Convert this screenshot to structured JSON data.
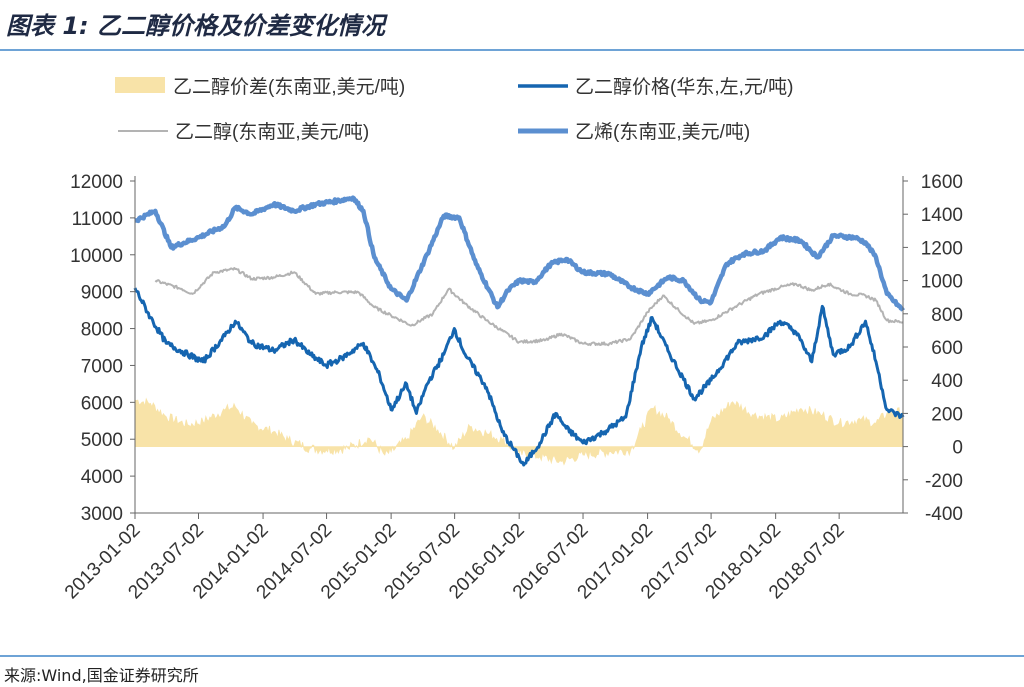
{
  "figure_title": "图表 1:   乙二醇价格及价差变化情况",
  "source": "来源:Wind,国金证券研究所",
  "colors": {
    "spread": "#f8e3a8",
    "price_east_china": "#1565b0",
    "meg_sea": "#b3b3b3",
    "ethylene_sea": "#5b8fd0",
    "axis": "#666666",
    "rule": "#6ea3d6"
  },
  "chart_data": {
    "type": "line",
    "title": "",
    "legend": [
      {
        "key": "spread",
        "label": "乙二醇价差(东南亚,美元/吨)",
        "style": "area"
      },
      {
        "key": "price_east_china",
        "label": "乙二醇价格(华东,左,元/吨)",
        "style": "line"
      },
      {
        "key": "meg_sea",
        "label": "乙二醇(东南亚,美元/吨)",
        "style": "line"
      },
      {
        "key": "ethylene_sea",
        "label": "乙烯(东南亚,美元/吨)",
        "style": "line"
      }
    ],
    "legend_position": "top",
    "x_ticks": [
      "2013-01-02",
      "2013-07-02",
      "2014-01-02",
      "2014-07-02",
      "2015-01-02",
      "2015-07-02",
      "2016-01-02",
      "2016-07-02",
      "2017-01-02",
      "2017-07-02",
      "2018-01-02",
      "2018-07-02"
    ],
    "x_range": [
      "2013-01-02",
      "2018-12-31"
    ],
    "y_left": {
      "min": 3000,
      "max": 12000,
      "ticks": [
        3000,
        4000,
        5000,
        6000,
        7000,
        8000,
        9000,
        10000,
        11000,
        12000
      ]
    },
    "y_right": {
      "min": -400,
      "max": 1600,
      "ticks": [
        -400,
        -200,
        0,
        200,
        400,
        600,
        800,
        1000,
        1200,
        1400,
        1600
      ]
    },
    "grid": false,
    "series": [
      {
        "key": "price_east_china",
        "name": "乙二醇价格(华东,左,元/吨)",
        "axis": "left",
        "points": [
          [
            "2013-01-02",
            9100
          ],
          [
            "2013-02-15",
            8300
          ],
          [
            "2013-04-01",
            7600
          ],
          [
            "2013-06-01",
            7300
          ],
          [
            "2013-07-15",
            7100
          ],
          [
            "2013-09-15",
            7800
          ],
          [
            "2013-10-15",
            8200
          ],
          [
            "2013-12-01",
            7600
          ],
          [
            "2014-02-01",
            7400
          ],
          [
            "2014-04-01",
            7700
          ],
          [
            "2014-05-15",
            7300
          ],
          [
            "2014-07-01",
            7000
          ],
          [
            "2014-08-15",
            7200
          ],
          [
            "2014-10-15",
            7600
          ],
          [
            "2014-12-01",
            6700
          ],
          [
            "2015-01-02",
            5800
          ],
          [
            "2015-02-15",
            6500
          ],
          [
            "2015-03-15",
            5700
          ],
          [
            "2015-04-15",
            6500
          ],
          [
            "2015-06-01",
            7300
          ],
          [
            "2015-07-01",
            8000
          ],
          [
            "2015-08-01",
            7300
          ],
          [
            "2015-10-01",
            6400
          ],
          [
            "2015-11-15",
            5200
          ],
          [
            "2016-01-02",
            4500
          ],
          [
            "2016-01-15",
            4300
          ],
          [
            "2016-03-01",
            4900
          ],
          [
            "2016-04-15",
            5700
          ],
          [
            "2016-05-15",
            5300
          ],
          [
            "2016-07-02",
            4900
          ],
          [
            "2016-09-01",
            5200
          ],
          [
            "2016-11-01",
            5600
          ],
          [
            "2016-12-15",
            7500
          ],
          [
            "2017-01-15",
            8300
          ],
          [
            "2017-03-01",
            7400
          ],
          [
            "2017-05-15",
            6100
          ],
          [
            "2017-07-02",
            6600
          ],
          [
            "2017-09-15",
            7600
          ],
          [
            "2017-12-01",
            7800
          ],
          [
            "2018-01-15",
            8200
          ],
          [
            "2018-03-01",
            7900
          ],
          [
            "2018-04-15",
            7100
          ],
          [
            "2018-05-15",
            8600
          ],
          [
            "2018-06-15",
            7300
          ],
          [
            "2018-08-01",
            7500
          ],
          [
            "2018-09-15",
            8200
          ],
          [
            "2018-10-15",
            7100
          ],
          [
            "2018-11-15",
            5800
          ],
          [
            "2018-12-31",
            5600
          ]
        ]
      },
      {
        "key": "meg_sea",
        "name": "乙二醇(东南亚,美元/吨)",
        "axis": "right",
        "points": [
          [
            "2013-03-01",
            1000
          ],
          [
            "2013-05-15",
            950
          ],
          [
            "2013-06-15",
            920
          ],
          [
            "2013-08-15",
            1050
          ],
          [
            "2013-10-15",
            1070
          ],
          [
            "2013-12-01",
            1010
          ],
          [
            "2014-02-01",
            1020
          ],
          [
            "2014-04-01",
            1050
          ],
          [
            "2014-06-01",
            920
          ],
          [
            "2014-08-01",
            930
          ],
          [
            "2014-10-01",
            930
          ],
          [
            "2014-11-15",
            840
          ],
          [
            "2015-01-02",
            790
          ],
          [
            "2015-03-01",
            730
          ],
          [
            "2015-05-01",
            800
          ],
          [
            "2015-06-15",
            950
          ],
          [
            "2015-08-01",
            860
          ],
          [
            "2015-10-01",
            760
          ],
          [
            "2016-01-02",
            630
          ],
          [
            "2016-03-15",
            640
          ],
          [
            "2016-05-01",
            680
          ],
          [
            "2016-07-02",
            620
          ],
          [
            "2016-09-15",
            620
          ],
          [
            "2016-11-15",
            650
          ],
          [
            "2017-01-02",
            810
          ],
          [
            "2017-02-15",
            910
          ],
          [
            "2017-04-01",
            820
          ],
          [
            "2017-05-15",
            740
          ],
          [
            "2017-07-02",
            760
          ],
          [
            "2017-09-15",
            850
          ],
          [
            "2017-11-15",
            920
          ],
          [
            "2018-01-15",
            960
          ],
          [
            "2018-03-01",
            980
          ],
          [
            "2018-04-15",
            940
          ],
          [
            "2018-06-01",
            980
          ],
          [
            "2018-08-01",
            920
          ],
          [
            "2018-09-15",
            910
          ],
          [
            "2018-10-15",
            880
          ],
          [
            "2018-11-15",
            760
          ],
          [
            "2018-12-31",
            750
          ]
        ]
      },
      {
        "key": "ethylene_sea",
        "name": "乙烯(东南亚,美元/吨)",
        "axis": "right",
        "points": [
          [
            "2013-01-02",
            1360
          ],
          [
            "2013-03-01",
            1420
          ],
          [
            "2013-04-15",
            1200
          ],
          [
            "2013-07-02",
            1260
          ],
          [
            "2013-09-15",
            1330
          ],
          [
            "2013-10-15",
            1440
          ],
          [
            "2013-12-01",
            1400
          ],
          [
            "2014-02-01",
            1460
          ],
          [
            "2014-04-01",
            1420
          ],
          [
            "2014-06-01",
            1460
          ],
          [
            "2014-08-01",
            1480
          ],
          [
            "2014-09-15",
            1500
          ],
          [
            "2014-10-15",
            1420
          ],
          [
            "2014-11-15",
            1140
          ],
          [
            "2015-01-02",
            950
          ],
          [
            "2015-02-15",
            880
          ],
          [
            "2015-04-15",
            1160
          ],
          [
            "2015-06-01",
            1390
          ],
          [
            "2015-07-15",
            1380
          ],
          [
            "2015-09-01",
            1100
          ],
          [
            "2015-11-01",
            840
          ],
          [
            "2015-12-01",
            940
          ],
          [
            "2016-01-02",
            1000
          ],
          [
            "2016-02-15",
            990
          ],
          [
            "2016-04-01",
            1100
          ],
          [
            "2016-05-15",
            1130
          ],
          [
            "2016-07-02",
            1050
          ],
          [
            "2016-09-15",
            1040
          ],
          [
            "2016-11-15",
            960
          ],
          [
            "2017-01-02",
            920
          ],
          [
            "2017-03-01",
            1020
          ],
          [
            "2017-04-15",
            1000
          ],
          [
            "2017-06-01",
            880
          ],
          [
            "2017-07-02",
            870
          ],
          [
            "2017-08-15",
            1100
          ],
          [
            "2017-10-01",
            1160
          ],
          [
            "2017-12-01",
            1180
          ],
          [
            "2018-01-15",
            1260
          ],
          [
            "2018-03-15",
            1240
          ],
          [
            "2018-05-01",
            1140
          ],
          [
            "2018-06-15",
            1270
          ],
          [
            "2018-08-15",
            1260
          ],
          [
            "2018-09-15",
            1230
          ],
          [
            "2018-10-15",
            1140
          ],
          [
            "2018-11-15",
            920
          ],
          [
            "2018-12-31",
            820
          ]
        ]
      },
      {
        "key": "spread",
        "name": "乙二醇价差(东南亚,美元/吨)",
        "axis": "right",
        "style": "area",
        "points": [
          [
            "2013-01-02",
            280
          ],
          [
            "2013-02-15",
            260
          ],
          [
            "2013-04-01",
            180
          ],
          [
            "2013-06-01",
            130
          ],
          [
            "2013-07-15",
            150
          ],
          [
            "2013-09-15",
            220
          ],
          [
            "2013-10-15",
            240
          ],
          [
            "2013-12-01",
            130
          ],
          [
            "2014-02-01",
            90
          ],
          [
            "2014-03-15",
            40
          ],
          [
            "2014-05-15",
            -10
          ],
          [
            "2014-07-01",
            -20
          ],
          [
            "2014-09-01",
            -10
          ],
          [
            "2014-11-01",
            50
          ],
          [
            "2014-12-15",
            -50
          ],
          [
            "2015-01-02",
            -30
          ],
          [
            "2015-02-15",
            40
          ],
          [
            "2015-04-01",
            180
          ],
          [
            "2015-05-15",
            100
          ],
          [
            "2015-07-01",
            -10
          ],
          [
            "2015-08-15",
            120
          ],
          [
            "2015-10-01",
            80
          ],
          [
            "2015-11-15",
            40
          ],
          [
            "2016-01-02",
            -40
          ],
          [
            "2016-03-01",
            -60
          ],
          [
            "2016-05-01",
            -90
          ],
          [
            "2016-07-02",
            -50
          ],
          [
            "2016-09-15",
            -30
          ],
          [
            "2016-11-15",
            -20
          ],
          [
            "2016-12-15",
            100
          ],
          [
            "2017-01-15",
            230
          ],
          [
            "2017-03-01",
            170
          ],
          [
            "2017-04-15",
            60
          ],
          [
            "2017-06-01",
            -20
          ],
          [
            "2017-07-02",
            150
          ],
          [
            "2017-09-01",
            270
          ],
          [
            "2017-11-01",
            190
          ],
          [
            "2018-01-15",
            160
          ],
          [
            "2018-03-15",
            230
          ],
          [
            "2018-05-15",
            190
          ],
          [
            "2018-07-02",
            140
          ],
          [
            "2018-09-01",
            160
          ],
          [
            "2018-10-15",
            140
          ],
          [
            "2018-11-15",
            200
          ],
          [
            "2018-12-31",
            210
          ]
        ]
      }
    ]
  }
}
